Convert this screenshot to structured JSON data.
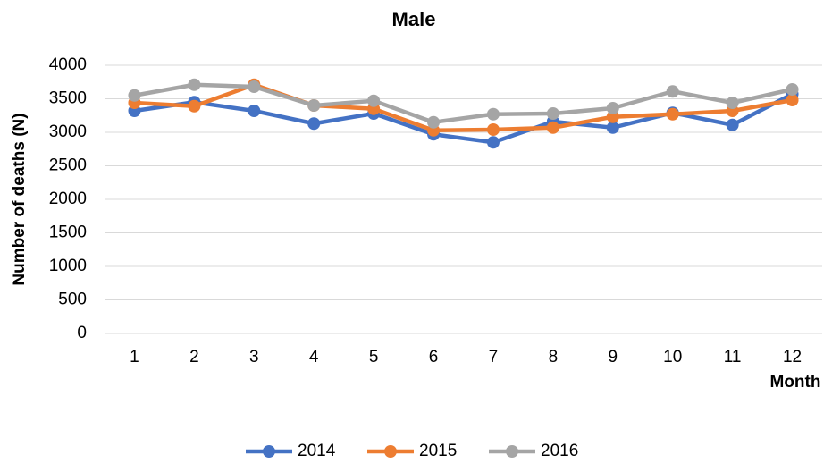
{
  "chart_data": {
    "type": "line",
    "title": "Male",
    "y_label": "Number of deaths (N)",
    "x_label": "Month",
    "categories": [
      "1",
      "2",
      "3",
      "4",
      "5",
      "6",
      "7",
      "8",
      "9",
      "10",
      "11",
      "12"
    ],
    "series": [
      {
        "name": "2014",
        "color": "#4472c4",
        "values": [
          3320,
          3450,
          3320,
          3130,
          3280,
          2970,
          2850,
          3160,
          3070,
          3290,
          3110,
          3570
        ]
      },
      {
        "name": "2015",
        "color": "#ed7d31",
        "values": [
          3440,
          3390,
          3710,
          3400,
          3350,
          3030,
          3040,
          3070,
          3230,
          3270,
          3320,
          3480
        ]
      },
      {
        "name": "2016",
        "color": "#a5a5a5",
        "values": [
          3550,
          3710,
          3680,
          3400,
          3470,
          3150,
          3270,
          3280,
          3360,
          3610,
          3440,
          3640
        ]
      }
    ],
    "ylim": [
      0,
      4000
    ],
    "yticks": [
      0,
      500,
      1000,
      1500,
      2000,
      2500,
      3000,
      3500,
      4000
    ],
    "grid": true,
    "legend": "bottom"
  }
}
